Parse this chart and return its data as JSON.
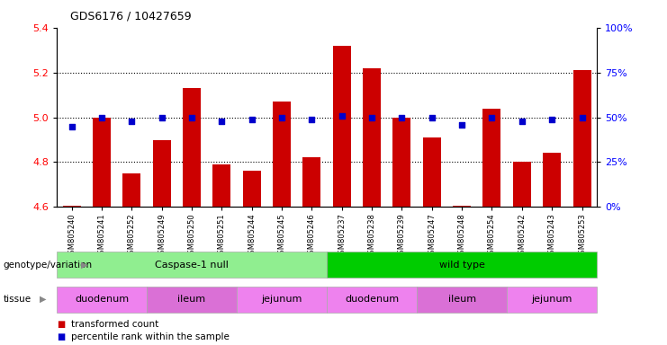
{
  "title": "GDS6176 / 10427659",
  "samples": [
    "GSM805240",
    "GSM805241",
    "GSM805252",
    "GSM805249",
    "GSM805250",
    "GSM805251",
    "GSM805244",
    "GSM805245",
    "GSM805246",
    "GSM805237",
    "GSM805238",
    "GSM805239",
    "GSM805247",
    "GSM805248",
    "GSM805254",
    "GSM805242",
    "GSM805243",
    "GSM805253"
  ],
  "transformed_count": [
    4.605,
    5.0,
    4.75,
    4.9,
    5.13,
    4.79,
    4.76,
    5.07,
    4.82,
    5.32,
    5.22,
    5.0,
    4.91,
    4.605,
    5.04,
    4.8,
    4.84,
    5.21
  ],
  "percentile_values": [
    45,
    50,
    48,
    50,
    50,
    48,
    49,
    50,
    49,
    51,
    50,
    50,
    50,
    46,
    50,
    48,
    49,
    50
  ],
  "bar_color": "#cc0000",
  "dot_color": "#0000cc",
  "ylim_left": [
    4.6,
    5.4
  ],
  "ylim_right": [
    0,
    100
  ],
  "yticks_left": [
    4.6,
    4.8,
    5.0,
    5.2,
    5.4
  ],
  "yticks_right": [
    0,
    25,
    50,
    75,
    100
  ],
  "grid_values": [
    4.8,
    5.0,
    5.2
  ],
  "genotype_groups": [
    {
      "label": "Caspase-1 null",
      "start": 0,
      "end": 9,
      "color": "#90ee90"
    },
    {
      "label": "wild type",
      "start": 9,
      "end": 18,
      "color": "#00cc00"
    }
  ],
  "tissue_groups": [
    {
      "label": "duodenum",
      "start": 0,
      "end": 3,
      "color": "#ee82ee"
    },
    {
      "label": "ileum",
      "start": 3,
      "end": 6,
      "color": "#da70d6"
    },
    {
      "label": "jejunum",
      "start": 6,
      "end": 9,
      "color": "#ee82ee"
    },
    {
      "label": "duodenum",
      "start": 9,
      "end": 12,
      "color": "#ee82ee"
    },
    {
      "label": "ileum",
      "start": 12,
      "end": 15,
      "color": "#da70d6"
    },
    {
      "label": "jejunum",
      "start": 15,
      "end": 18,
      "color": "#ee82ee"
    }
  ],
  "background_color": "#ffffff"
}
